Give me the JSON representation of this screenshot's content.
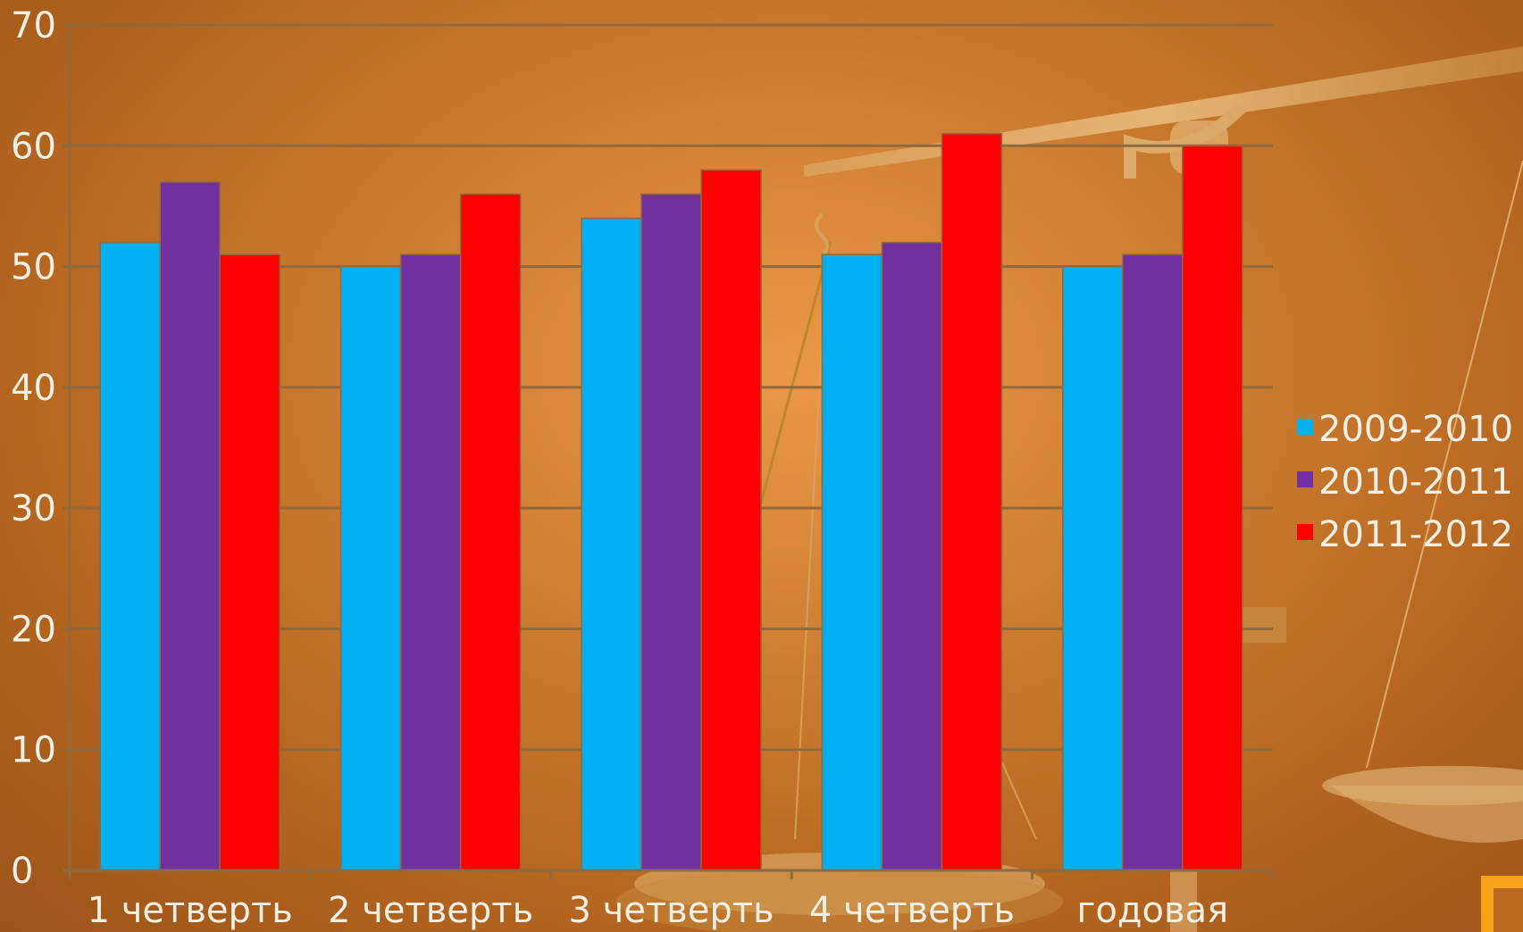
{
  "chart_data": {
    "type": "bar",
    "categories": [
      "1 четверть",
      "2 четверть",
      "3 четверть",
      "4 четверть",
      "годовая"
    ],
    "series": [
      {
        "name": "2009-2010",
        "values": [
          52,
          50,
          54,
          51,
          50
        ],
        "color": "#00b0f0"
      },
      {
        "name": "2010-2011",
        "values": [
          57,
          51,
          56,
          52,
          51
        ],
        "color": "#7030a0"
      },
      {
        "name": "2011-2012",
        "values": [
          51,
          56,
          58,
          61,
          60
        ],
        "color": "#ff0000"
      }
    ],
    "ylim": [
      0,
      70
    ],
    "yticks": [
      0,
      10,
      20,
      30,
      40,
      50,
      60,
      70
    ],
    "grid": true,
    "legend": "right"
  }
}
